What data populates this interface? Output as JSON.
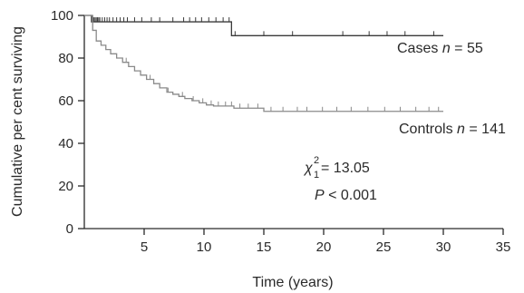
{
  "chart_data": {
    "type": "line",
    "title": "",
    "xlabel": "Time (years)",
    "ylabel": "Cumulative per cent surviving",
    "xlim": [
      0,
      35
    ],
    "ylim": [
      0,
      100
    ],
    "xticks": [
      "5",
      "10",
      "15",
      "20",
      "25",
      "30",
      "35"
    ],
    "yticks": [
      "0",
      "20",
      "40",
      "60",
      "80",
      "100"
    ],
    "grid": false,
    "legend": "inline labels at right of each curve",
    "series": [
      {
        "name": "Cases n = 55",
        "step": true,
        "color": "#3a3a3a",
        "x": [
          0,
          0.6,
          12.3,
          30
        ],
        "y": [
          100,
          97,
          90.5,
          90.5
        ],
        "censor_x": [
          0.7,
          0.8,
          0.9,
          1.0,
          1.1,
          1.2,
          1.3,
          1.5,
          1.7,
          1.9,
          2.1,
          2.4,
          2.7,
          3.0,
          3.3,
          3.6,
          4.2,
          4.8,
          5.6,
          6.3,
          7.4,
          8.3,
          8.8,
          9.3,
          9.8,
          10.4,
          11.0,
          11.6,
          12.1,
          12.6,
          15.0,
          17.4,
          21.6,
          23.8,
          25.3,
          26.8,
          29.2
        ]
      },
      {
        "name": "Controls n = 141",
        "step": true,
        "color": "#8a8a8a",
        "x": [
          0,
          0.7,
          1.0,
          1.4,
          1.8,
          2.2,
          2.7,
          3.2,
          3.7,
          4.2,
          4.7,
          5.2,
          5.8,
          6.3,
          6.9,
          7.4,
          7.9,
          8.4,
          9.0,
          9.6,
          10.2,
          10.8,
          12.5,
          15.0,
          30
        ],
        "y": [
          100,
          93,
          88,
          86,
          84,
          82,
          80,
          78,
          76,
          74,
          72,
          70,
          68,
          66,
          64,
          63,
          62,
          61,
          60,
          59,
          58,
          57.5,
          56.5,
          55,
          55
        ],
        "censor_x": [
          3.5,
          5.5,
          7.0,
          8.2,
          9.1,
          9.9,
          10.6,
          11.2,
          11.8,
          12.3,
          13.0,
          13.7,
          14.5,
          15.6,
          16.6,
          17.8,
          18.6,
          19.9,
          21.1,
          22.3,
          23.7,
          25.1,
          26.4,
          27.7,
          28.8,
          29.6
        ]
      }
    ],
    "annotations": [
      {
        "text": "Cases",
        "n_text": "n",
        "eq": " = 55"
      },
      {
        "text": "Controls",
        "n_text": "n",
        "eq": " = 141"
      },
      {
        "chi": "χ",
        "sup": "2",
        "sub": "1",
        "eq": " = 13.05"
      },
      {
        "p": "P",
        "eq": " < 0.001"
      }
    ]
  }
}
